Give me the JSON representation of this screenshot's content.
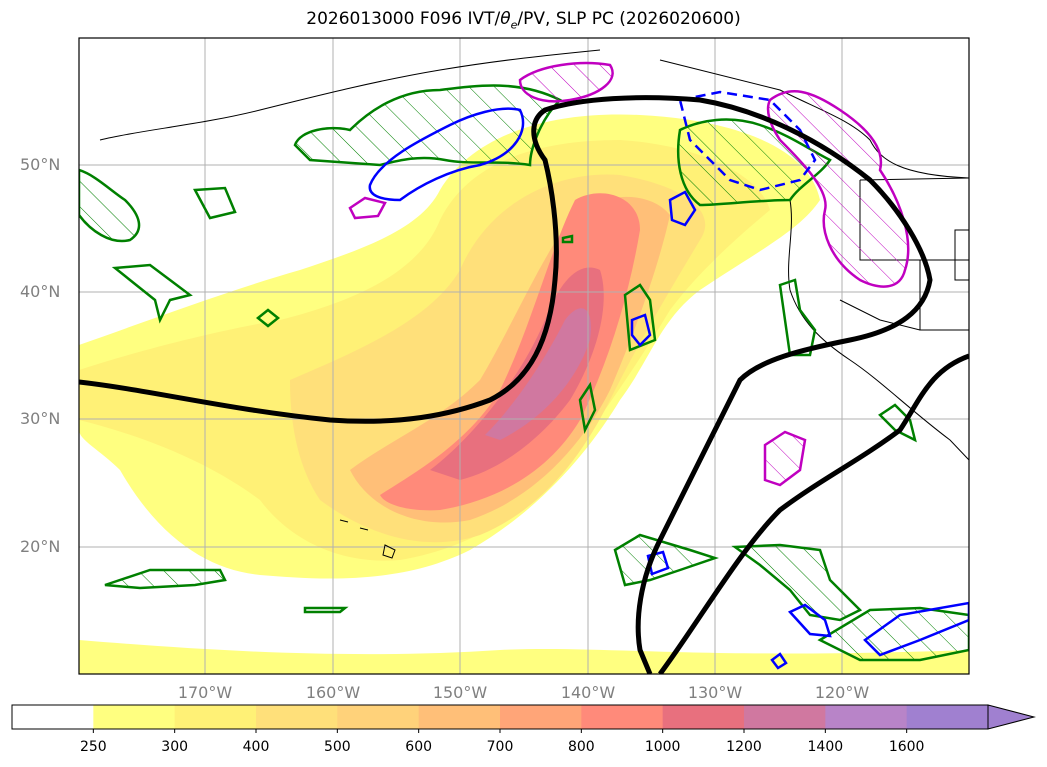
{
  "title_main": "2026013000 F096 IVT/",
  "title_theta": "θ",
  "title_sub": "e",
  "title_rest": "/PV, SLP PC (2026020600)",
  "lat_labels": [
    "50°N",
    "40°N",
    "30°N",
    "20°N"
  ],
  "lon_labels": [
    "170°W",
    "160°W",
    "150°W",
    "140°W",
    "130°W",
    "120°W"
  ],
  "colorbar": {
    "labels": [
      "250",
      "300",
      "400",
      "500",
      "600",
      "700",
      "800",
      "1000",
      "1200",
      "1400",
      "1600"
    ],
    "colors": [
      "#ffffff",
      "#ffff80",
      "#fff176",
      "#ffe07a",
      "#ffd27a",
      "#ffbf78",
      "#ffa578",
      "#ff8a7a",
      "#e8707e",
      "#d078a0",
      "#b884c8",
      "#a080d0"
    ]
  },
  "colors": {
    "theta_e_contour": "#008000",
    "pv_positive": "#0000ff",
    "pv_hatched": "#c000c0",
    "slp_contour": "#000000",
    "land_coast": "#000000"
  }
}
